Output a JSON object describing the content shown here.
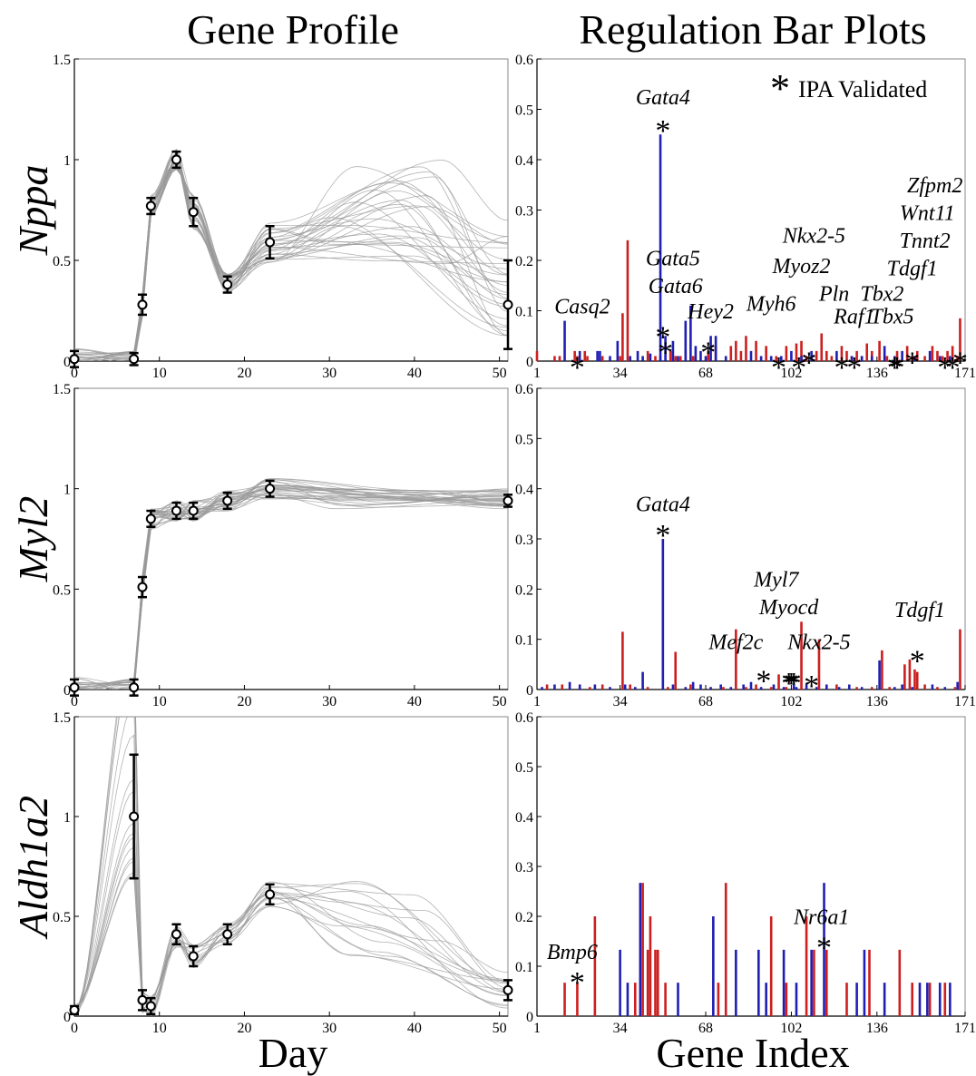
{
  "titles": {
    "left": "Gene Profile",
    "right": "Regulation Bar Plots"
  },
  "xlabels": {
    "left": "Day",
    "right": "Gene Index"
  },
  "legend": {
    "symbol": "*",
    "text": "IPA Validated"
  },
  "colors": {
    "red": "#cc1f1f",
    "blue": "#1f1fb4",
    "curve": "#9a9a9a",
    "axis": "#000000",
    "frame": "#888888"
  },
  "chart_data": [
    {
      "type": "line",
      "panel": "gene-profile",
      "gene": "Nppa",
      "xlim": [
        0,
        51
      ],
      "ylim": [
        0,
        1.5
      ],
      "xticks": [
        0,
        10,
        20,
        30,
        40,
        50
      ],
      "xticklabels": [
        "0",
        "10",
        "20",
        "30",
        "40",
        "50"
      ],
      "yticks": [
        0,
        0.5,
        1,
        1.5
      ],
      "yticklabels": [
        "0",
        "0.5",
        "1",
        "1.5"
      ],
      "points": {
        "x": [
          0,
          7,
          8,
          9,
          12,
          14,
          18,
          23,
          51
        ],
        "y": [
          0.01,
          0.01,
          0.28,
          0.77,
          1.0,
          0.74,
          0.38,
          0.59,
          0.28
        ],
        "err": [
          0.04,
          0.03,
          0.05,
          0.04,
          0.04,
          0.07,
          0.04,
          0.08,
          0.22
        ]
      },
      "curves": {
        "count": 30,
        "late_min": 0.45,
        "late_max": 1.0,
        "end_min": 0.12,
        "end_max": 0.72
      }
    },
    {
      "type": "bar",
      "panel": "regulation",
      "gene": "Nppa",
      "xlim": [
        1,
        171
      ],
      "ylim": [
        0,
        0.6
      ],
      "xticks": [
        1,
        34,
        68,
        102,
        136,
        171
      ],
      "xticklabels": [
        "1",
        "34",
        "68",
        "102",
        "136",
        "171"
      ],
      "yticks": [
        0,
        0.1,
        0.2,
        0.3,
        0.4,
        0.5,
        0.6
      ],
      "yticklabels": [
        "0",
        "0.1",
        "0.2",
        "0.3",
        "0.4",
        "0.5",
        "0.6"
      ],
      "red": {
        "x": [
          1,
          8,
          10,
          16,
          17,
          20,
          21,
          27,
          34,
          35,
          37,
          45,
          48,
          50,
          54,
          56,
          58,
          60,
          63,
          69,
          72,
          78,
          80,
          82,
          84,
          88,
          92,
          96,
          100,
          104,
          106,
          108,
          112,
          114,
          116,
          118,
          122,
          124,
          126,
          128,
          130,
          132,
          134,
          137,
          140,
          144,
          148,
          150,
          152,
          155,
          158,
          160,
          162,
          164,
          166,
          168,
          169
        ],
        "values": [
          0.02,
          0.01,
          0.01,
          0.02,
          0.01,
          0.02,
          0.01,
          0.01,
          0.01,
          0.095,
          0.24,
          0.02,
          0.01,
          0.01,
          0.02,
          0.01,
          0.01,
          0.02,
          0.01,
          0.02,
          0.03,
          0.03,
          0.04,
          0.02,
          0.05,
          0.04,
          0.03,
          0.01,
          0.03,
          0.035,
          0.04,
          0.01,
          0.02,
          0.055,
          0.02,
          0.01,
          0.03,
          0.02,
          0.01,
          0.02,
          0.01,
          0.035,
          0.02,
          0.04,
          0.01,
          0.02,
          0.03,
          0.01,
          0.02,
          0.01,
          0.03,
          0.02,
          0.01,
          0.02,
          0.03,
          0.01,
          0.085
        ]
      },
      "blue": {
        "x": [
          12,
          18,
          25,
          26,
          30,
          33,
          38,
          41,
          43,
          46,
          50,
          52,
          55,
          57,
          60,
          62,
          64,
          66,
          68,
          70,
          72,
          76,
          86,
          90,
          94,
          98,
          102,
          106,
          110,
          120,
          126,
          130,
          134,
          139,
          143,
          146,
          151,
          157,
          161,
          165
        ],
        "values": [
          0.08,
          0.02,
          0.02,
          0.02,
          0.01,
          0.04,
          0.01,
          0.02,
          0.01,
          0.015,
          0.45,
          0.05,
          0.04,
          0.01,
          0.08,
          0.11,
          0.03,
          0.02,
          0.01,
          0.05,
          0.05,
          0.01,
          0.02,
          0.01,
          0.01,
          0.01,
          0.02,
          0.01,
          0.02,
          0.02,
          0.01,
          0.01,
          0.01,
          0.03,
          0.01,
          0.02,
          0.01,
          0.02,
          0.01,
          0.01
        ]
      },
      "stars": [
        {
          "x": 51,
          "y": 0.47
        },
        {
          "x": 17,
          "y": 0.0
        },
        {
          "x": 51,
          "y": 0.06
        },
        {
          "x": 52,
          "y": 0.03
        },
        {
          "x": 69,
          "y": 0.03
        },
        {
          "x": 97,
          "y": 0.0
        },
        {
          "x": 105,
          "y": 0.0
        },
        {
          "x": 109,
          "y": 0.01
        },
        {
          "x": 122,
          "y": 0.0
        },
        {
          "x": 127,
          "y": 0.0
        },
        {
          "x": 143,
          "y": 0.0
        },
        {
          "x": 144,
          "y": 0.0
        },
        {
          "x": 150,
          "y": 0.01
        },
        {
          "x": 163,
          "y": 0.0
        },
        {
          "x": 166,
          "y": 0.0
        },
        {
          "x": 169,
          "y": 0.01
        }
      ],
      "annotations": [
        {
          "text": "Gata4",
          "x": 51,
          "y": 0.51
        },
        {
          "text": "Casq2",
          "x": 19,
          "y": 0.095
        },
        {
          "text": "Gata5",
          "x": 55,
          "y": 0.19
        },
        {
          "text": "Gata6",
          "x": 56,
          "y": 0.135
        },
        {
          "text": "Hey2",
          "x": 70,
          "y": 0.085
        },
        {
          "text": "Myh6",
          "x": 94,
          "y": 0.1
        },
        {
          "text": "Nkx2-5",
          "x": 111,
          "y": 0.235
        },
        {
          "text": "Myoz2",
          "x": 106,
          "y": 0.175
        },
        {
          "text": "Pln",
          "x": 119,
          "y": 0.12
        },
        {
          "text": "Raf1",
          "x": 127,
          "y": 0.075
        },
        {
          "text": "Tbx2",
          "x": 138,
          "y": 0.12
        },
        {
          "text": "Tbx5",
          "x": 142,
          "y": 0.075
        },
        {
          "text": "Tdgf1",
          "x": 150,
          "y": 0.17
        },
        {
          "text": "Tnnt2",
          "x": 155,
          "y": 0.225
        },
        {
          "text": "Wnt11",
          "x": 156,
          "y": 0.28
        },
        {
          "text": "Zfpm2",
          "x": 159,
          "y": 0.335
        }
      ]
    },
    {
      "type": "line",
      "panel": "gene-profile",
      "gene": "Myl2",
      "xlim": [
        0,
        51
      ],
      "ylim": [
        0,
        1.5
      ],
      "xticks": [
        0,
        10,
        20,
        30,
        40,
        50
      ],
      "xticklabels": [
        "0",
        "10",
        "20",
        "30",
        "40",
        "50"
      ],
      "yticks": [
        0,
        0.5,
        1,
        1.5
      ],
      "yticklabels": [
        "0",
        "0.5",
        "1",
        "1.5"
      ],
      "points": {
        "x": [
          0,
          7,
          8,
          9,
          12,
          14,
          18,
          23,
          51
        ],
        "y": [
          0.01,
          0.01,
          0.51,
          0.85,
          0.89,
          0.89,
          0.94,
          1.0,
          0.94
        ],
        "err": [
          0.04,
          0.04,
          0.05,
          0.04,
          0.04,
          0.04,
          0.04,
          0.04,
          0.03
        ]
      },
      "curves": {
        "count": 30,
        "late_min": 0.9,
        "late_max": 1.0,
        "end_min": 0.9,
        "end_max": 1.0
      }
    },
    {
      "type": "bar",
      "panel": "regulation",
      "gene": "Myl2",
      "xlim": [
        1,
        171
      ],
      "ylim": [
        0,
        0.6
      ],
      "xticks": [
        1,
        34,
        68,
        102,
        136,
        171
      ],
      "xticklabels": [
        "1",
        "34",
        "68",
        "102",
        "136",
        "171"
      ],
      "yticks": [
        0,
        0.1,
        0.2,
        0.3,
        0.4,
        0.5,
        0.6
      ],
      "yticklabels": [
        "0",
        "0.1",
        "0.2",
        "0.3",
        "0.4",
        "0.5",
        "0.6"
      ],
      "red": {
        "x": [
          5,
          11,
          22,
          27,
          35,
          38,
          45,
          53,
          56,
          62,
          75,
          80,
          84,
          88,
          94,
          97,
          100,
          106,
          113,
          120,
          128,
          134,
          138,
          141,
          147,
          149,
          151,
          152,
          155,
          160,
          167,
          169
        ],
        "values": [
          0.01,
          0.01,
          0.005,
          0.01,
          0.115,
          0.01,
          0.005,
          0.005,
          0.075,
          0.01,
          0.005,
          0.12,
          0.005,
          0.01,
          0.005,
          0.03,
          0.005,
          0.135,
          0.1,
          0.01,
          0.005,
          0.005,
          0.078,
          0.005,
          0.05,
          0.06,
          0.04,
          0.035,
          0.01,
          0.005,
          0.005,
          0.12
        ]
      },
      "blue": {
        "x": [
          3,
          8,
          14,
          18,
          24,
          30,
          36,
          40,
          43,
          51,
          55,
          60,
          63,
          66,
          70,
          74,
          78,
          83,
          86,
          90,
          95,
          99,
          103,
          104,
          108,
          112,
          116,
          121,
          125,
          130,
          137,
          143,
          146,
          150,
          158,
          163,
          168
        ],
        "values": [
          0.005,
          0.01,
          0.015,
          0.01,
          0.01,
          0.005,
          0.01,
          0.005,
          0.035,
          0.3,
          0.01,
          0.005,
          0.015,
          0.01,
          0.005,
          0.01,
          0.005,
          0.01,
          0.015,
          0.005,
          0.01,
          0.005,
          0.01,
          0.005,
          0.01,
          0.005,
          0.01,
          0.005,
          0.01,
          0.005,
          0.058,
          0.005,
          0.01,
          0.005,
          0.01,
          0.005,
          0.015
        ]
      },
      "stars": [
        {
          "x": 51,
          "y": 0.32
        },
        {
          "x": 91,
          "y": 0.03
        },
        {
          "x": 101,
          "y": 0.025
        },
        {
          "x": 102,
          "y": 0.025
        },
        {
          "x": 103,
          "y": 0.025
        },
        {
          "x": 110,
          "y": 0.02
        },
        {
          "x": 152,
          "y": 0.07
        }
      ],
      "annotations": [
        {
          "text": "Gata4",
          "x": 51,
          "y": 0.355
        },
        {
          "text": "Mef2c",
          "x": 80,
          "y": 0.08
        },
        {
          "text": "Myl7",
          "x": 96,
          "y": 0.205
        },
        {
          "text": "Myocd",
          "x": 101,
          "y": 0.15
        },
        {
          "text": "Nkx2-5",
          "x": 113,
          "y": 0.08
        },
        {
          "text": "Tdgf1",
          "x": 153,
          "y": 0.145
        }
      ]
    },
    {
      "type": "line",
      "panel": "gene-profile",
      "gene": "Aldh1a2",
      "xlim": [
        0,
        51
      ],
      "ylim": [
        0,
        1.5
      ],
      "xticks": [
        0,
        10,
        20,
        30,
        40,
        50
      ],
      "xticklabels": [
        "0",
        "10",
        "20",
        "30",
        "40",
        "50"
      ],
      "yticks": [
        0,
        0.5,
        1,
        1.5
      ],
      "yticklabels": [
        "0",
        "0.5",
        "1",
        "1.5"
      ],
      "points": {
        "x": [
          0,
          7,
          8,
          9,
          12,
          14,
          18,
          23,
          51
        ],
        "y": [
          0.03,
          1.0,
          0.08,
          0.05,
          0.41,
          0.3,
          0.41,
          0.61,
          0.13
        ],
        "err": [
          0.02,
          0.31,
          0.05,
          0.04,
          0.05,
          0.05,
          0.05,
          0.05,
          0.05
        ]
      },
      "curves": {
        "count": 16,
        "late_min": 0.3,
        "late_max": 0.68,
        "end_min": 0.04,
        "end_max": 0.22
      }
    },
    {
      "type": "bar",
      "panel": "regulation",
      "gene": "Aldh1a2",
      "xlim": [
        1,
        171
      ],
      "ylim": [
        0,
        0.6
      ],
      "xticks": [
        1,
        34,
        68,
        102,
        136,
        171
      ],
      "xticklabels": [
        "1",
        "34",
        "68",
        "102",
        "136",
        "171"
      ],
      "yticks": [
        0,
        0.1,
        0.2,
        0.3,
        0.4,
        0.5,
        0.6
      ],
      "yticklabels": [
        "0",
        "0.1",
        "0.2",
        "0.3",
        "0.4",
        "0.5",
        "0.6"
      ],
      "red": {
        "x": [
          12,
          17,
          24,
          40,
          43,
          45,
          46,
          48,
          49,
          52,
          73,
          76,
          94,
          100,
          108,
          111,
          116,
          124,
          133,
          145,
          150,
          157,
          163
        ],
        "values": [
          0.067,
          0.067,
          0.2,
          0.067,
          0.267,
          0.133,
          0.2,
          0.133,
          0.133,
          0.067,
          0.067,
          0.267,
          0.2,
          0.067,
          0.2,
          0.133,
          0.133,
          0.067,
          0.133,
          0.133,
          0.067,
          0.067,
          0.067
        ]
      },
      "blue": {
        "x": [
          34,
          37,
          42,
          57,
          71,
          80,
          89,
          92,
          99,
          104,
          110,
          115,
          128,
          131,
          139,
          153,
          156,
          161,
          165
        ],
        "values": [
          0.133,
          0.067,
          0.267,
          0.067,
          0.2,
          0.133,
          0.133,
          0.067,
          0.133,
          0.067,
          0.133,
          0.267,
          0.067,
          0.133,
          0.067,
          0.067,
          0.067,
          0.067,
          0.067
        ]
      },
      "stars": [
        {
          "x": 17,
          "y": 0.08
        },
        {
          "x": 115,
          "y": 0.15
        }
      ],
      "annotations": [
        {
          "text": "Bmp6",
          "x": 15,
          "y": 0.115
        },
        {
          "text": "Nr6a1",
          "x": 114,
          "y": 0.185
        }
      ]
    }
  ]
}
